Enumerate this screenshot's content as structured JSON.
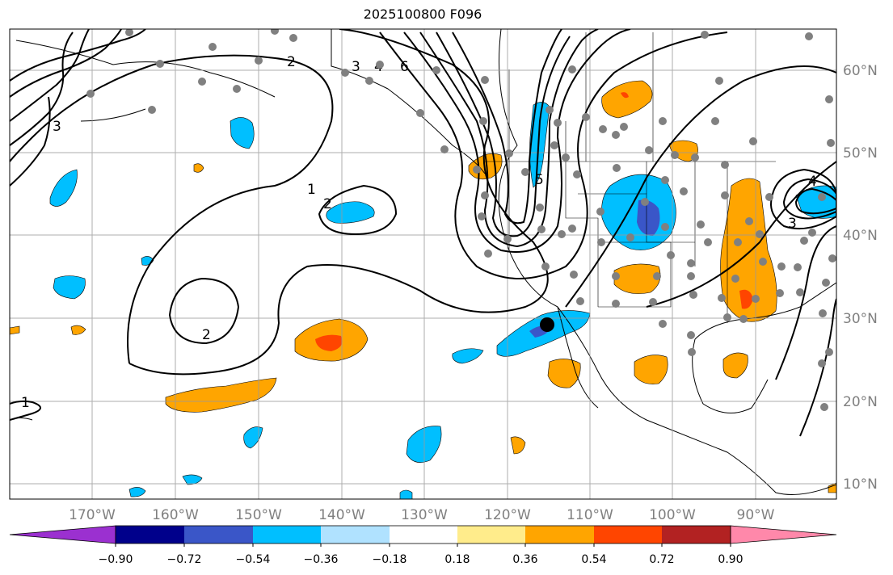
{
  "title": "2025100800 F096",
  "lat_labels": [
    "60°N",
    "50°N",
    "40°N",
    "30°N",
    "20°N",
    "10°N"
  ],
  "lon_labels": [
    "170°W",
    "160°W",
    "150°W",
    "140°W",
    "130°W",
    "120°W",
    "110°W",
    "100°W",
    "90°W"
  ],
  "colorbar": {
    "tick_labels": [
      "−0.90",
      "−0.72",
      "−0.54",
      "−0.36",
      "−0.18",
      "0.18",
      "0.36",
      "0.54",
      "0.72",
      "0.90"
    ],
    "colors": [
      "#9b30d0",
      "#00008b",
      "#3a56c8",
      "#00bfff",
      "#b0e2ff",
      "#ffffff",
      "#ffec8b",
      "#ffa500",
      "#ff4500",
      "#b22222",
      "#ff88aa"
    ]
  },
  "contour_labels": [
    "2",
    "3",
    "4",
    "5",
    "6",
    "1",
    "2",
    "2",
    "1",
    "3",
    "4",
    "3"
  ],
  "colors": {
    "grid": "#9a9a9a",
    "station_dot": "#808080",
    "marker": "#000000"
  }
}
